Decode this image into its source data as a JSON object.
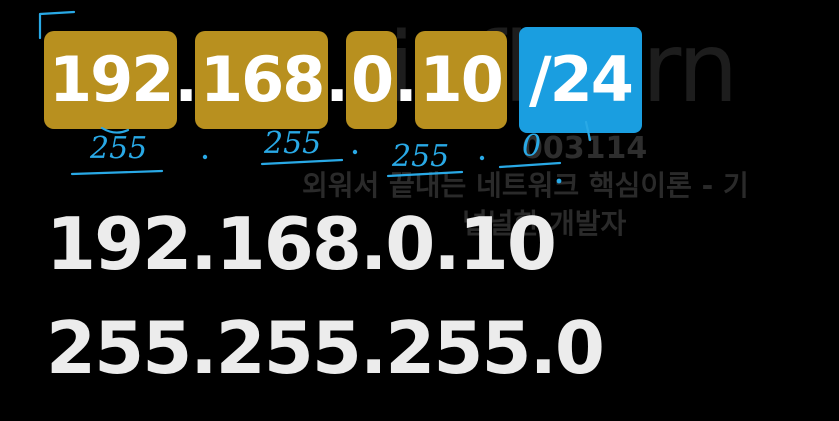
{
  "watermark": {
    "logo": "inflearn",
    "code": "003114",
    "course": "외워서 끝내는 네트워크 핵심이론 - 기",
    "author": "널널한 개발자"
  },
  "highlighted": {
    "octets": [
      "192",
      "168",
      "0",
      "10"
    ],
    "prefix": "/24",
    "colors": {
      "octet": "#b8901f",
      "prefix": "#1a9ee0"
    }
  },
  "handwriting": {
    "annotations": [
      "255",
      "255",
      "255",
      "0"
    ],
    "color": "#29a9e6"
  },
  "ip_address": "192.168.0.10",
  "subnet_mask": "255.255.255.0"
}
